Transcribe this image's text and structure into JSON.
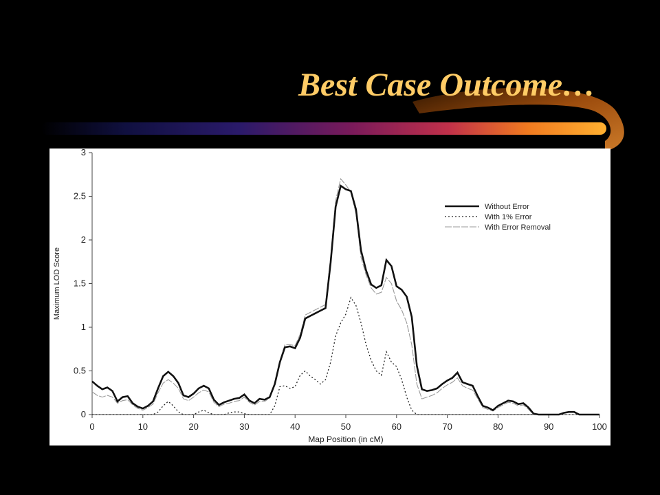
{
  "slide": {
    "title": "Best Case Outcome…",
    "title_color": "#FFCC66",
    "background": "#000000"
  },
  "chart_data": {
    "type": "line",
    "title": "",
    "xlabel": "Map Position (in cM)",
    "ylabel": "Maximum LOD Score",
    "xlim": [
      0,
      100
    ],
    "ylim": [
      0,
      3
    ],
    "xticks": [
      0,
      10,
      20,
      30,
      40,
      50,
      60,
      70,
      80,
      90,
      100
    ],
    "yticks": [
      0,
      0.5,
      1,
      1.5,
      2,
      2.5,
      3
    ],
    "grid": false,
    "legend_position": "top-right",
    "series": [
      {
        "name": "Without Error",
        "style": "solid-thick",
        "points": [
          [
            0,
            0.38
          ],
          [
            1,
            0.33
          ],
          [
            2,
            0.29
          ],
          [
            3,
            0.31
          ],
          [
            4,
            0.27
          ],
          [
            5,
            0.15
          ],
          [
            6,
            0.2
          ],
          [
            7,
            0.21
          ],
          [
            8,
            0.13
          ],
          [
            9,
            0.09
          ],
          [
            10,
            0.07
          ],
          [
            11,
            0.1
          ],
          [
            12,
            0.15
          ],
          [
            13,
            0.3
          ],
          [
            14,
            0.44
          ],
          [
            15,
            0.49
          ],
          [
            16,
            0.44
          ],
          [
            17,
            0.36
          ],
          [
            18,
            0.22
          ],
          [
            19,
            0.2
          ],
          [
            20,
            0.24
          ],
          [
            21,
            0.3
          ],
          [
            22,
            0.33
          ],
          [
            23,
            0.3
          ],
          [
            24,
            0.17
          ],
          [
            25,
            0.11
          ],
          [
            26,
            0.14
          ],
          [
            27,
            0.16
          ],
          [
            28,
            0.18
          ],
          [
            29,
            0.19
          ],
          [
            30,
            0.23
          ],
          [
            31,
            0.16
          ],
          [
            32,
            0.13
          ],
          [
            33,
            0.18
          ],
          [
            34,
            0.17
          ],
          [
            35,
            0.2
          ],
          [
            36,
            0.35
          ],
          [
            37,
            0.6
          ],
          [
            38,
            0.77
          ],
          [
            39,
            0.78
          ],
          [
            40,
            0.76
          ],
          [
            41,
            0.88
          ],
          [
            42,
            1.1
          ],
          [
            43,
            1.13
          ],
          [
            44,
            1.16
          ],
          [
            45,
            1.19
          ],
          [
            46,
            1.22
          ],
          [
            47,
            1.74
          ],
          [
            48,
            2.38
          ],
          [
            49,
            2.62
          ],
          [
            50,
            2.58
          ],
          [
            51,
            2.56
          ],
          [
            52,
            2.35
          ],
          [
            53,
            1.88
          ],
          [
            54,
            1.65
          ],
          [
            55,
            1.49
          ],
          [
            56,
            1.45
          ],
          [
            57,
            1.48
          ],
          [
            58,
            1.77
          ],
          [
            59,
            1.7
          ],
          [
            60,
            1.47
          ],
          [
            61,
            1.43
          ],
          [
            62,
            1.35
          ],
          [
            63,
            1.12
          ],
          [
            64,
            0.56
          ],
          [
            65,
            0.29
          ],
          [
            66,
            0.27
          ],
          [
            67,
            0.28
          ],
          [
            68,
            0.3
          ],
          [
            69,
            0.35
          ],
          [
            70,
            0.39
          ],
          [
            71,
            0.42
          ],
          [
            72,
            0.48
          ],
          [
            73,
            0.37
          ],
          [
            74,
            0.35
          ],
          [
            75,
            0.33
          ],
          [
            76,
            0.21
          ],
          [
            77,
            0.1
          ],
          [
            78,
            0.08
          ],
          [
            79,
            0.05
          ],
          [
            80,
            0.1
          ],
          [
            81,
            0.13
          ],
          [
            82,
            0.16
          ],
          [
            83,
            0.15
          ],
          [
            84,
            0.12
          ],
          [
            85,
            0.13
          ],
          [
            86,
            0.08
          ],
          [
            87,
            0.01
          ],
          [
            88,
            0.0
          ],
          [
            89,
            0.0
          ],
          [
            90,
            0.0
          ],
          [
            92,
            0.0
          ],
          [
            93,
            0.02
          ],
          [
            94,
            0.03
          ],
          [
            95,
            0.03
          ],
          [
            96,
            0.0
          ],
          [
            98,
            0.0
          ],
          [
            100,
            0.0
          ]
        ]
      },
      {
        "name": "With 1% Error",
        "style": "dotted",
        "points": [
          [
            0,
            0.0
          ],
          [
            5,
            0.0
          ],
          [
            12,
            0.0
          ],
          [
            13,
            0.03
          ],
          [
            14,
            0.1
          ],
          [
            15,
            0.15
          ],
          [
            16,
            0.1
          ],
          [
            17,
            0.03
          ],
          [
            18,
            0.0
          ],
          [
            19,
            0.0
          ],
          [
            20,
            0.0
          ],
          [
            21,
            0.03
          ],
          [
            22,
            0.05
          ],
          [
            23,
            0.02
          ],
          [
            24,
            0.0
          ],
          [
            26,
            0.0
          ],
          [
            27,
            0.02
          ],
          [
            28,
            0.03
          ],
          [
            29,
            0.03
          ],
          [
            30,
            0.01
          ],
          [
            31,
            0.0
          ],
          [
            35,
            0.0
          ],
          [
            36,
            0.1
          ],
          [
            37,
            0.32
          ],
          [
            38,
            0.33
          ],
          [
            39,
            0.3
          ],
          [
            40,
            0.32
          ],
          [
            41,
            0.45
          ],
          [
            42,
            0.5
          ],
          [
            43,
            0.44
          ],
          [
            44,
            0.4
          ],
          [
            45,
            0.35
          ],
          [
            46,
            0.4
          ],
          [
            47,
            0.6
          ],
          [
            48,
            0.9
          ],
          [
            49,
            1.05
          ],
          [
            50,
            1.15
          ],
          [
            51,
            1.34
          ],
          [
            52,
            1.25
          ],
          [
            53,
            1.05
          ],
          [
            54,
            0.8
          ],
          [
            55,
            0.62
          ],
          [
            56,
            0.5
          ],
          [
            57,
            0.45
          ],
          [
            58,
            0.72
          ],
          [
            59,
            0.6
          ],
          [
            60,
            0.55
          ],
          [
            61,
            0.4
          ],
          [
            62,
            0.2
          ],
          [
            63,
            0.05
          ],
          [
            64,
            0.0
          ],
          [
            100,
            0.0
          ]
        ]
      },
      {
        "name": "With Error Removal",
        "style": "dashed-thin",
        "points": [
          [
            0,
            0.26
          ],
          [
            1,
            0.22
          ],
          [
            2,
            0.2
          ],
          [
            3,
            0.22
          ],
          [
            4,
            0.2
          ],
          [
            5,
            0.13
          ],
          [
            6,
            0.16
          ],
          [
            7,
            0.17
          ],
          [
            8,
            0.11
          ],
          [
            9,
            0.07
          ],
          [
            10,
            0.05
          ],
          [
            11,
            0.08
          ],
          [
            12,
            0.12
          ],
          [
            13,
            0.25
          ],
          [
            14,
            0.36
          ],
          [
            15,
            0.4
          ],
          [
            16,
            0.36
          ],
          [
            17,
            0.3
          ],
          [
            18,
            0.18
          ],
          [
            19,
            0.16
          ],
          [
            20,
            0.2
          ],
          [
            21,
            0.25
          ],
          [
            22,
            0.28
          ],
          [
            23,
            0.26
          ],
          [
            24,
            0.14
          ],
          [
            25,
            0.09
          ],
          [
            26,
            0.12
          ],
          [
            27,
            0.13
          ],
          [
            28,
            0.15
          ],
          [
            29,
            0.16
          ],
          [
            30,
            0.2
          ],
          [
            31,
            0.14
          ],
          [
            32,
            0.11
          ],
          [
            33,
            0.15
          ],
          [
            34,
            0.15
          ],
          [
            35,
            0.19
          ],
          [
            36,
            0.36
          ],
          [
            37,
            0.62
          ],
          [
            38,
            0.8
          ],
          [
            39,
            0.8
          ],
          [
            40,
            0.79
          ],
          [
            41,
            0.92
          ],
          [
            42,
            1.14
          ],
          [
            43,
            1.17
          ],
          [
            44,
            1.2
          ],
          [
            45,
            1.23
          ],
          [
            46,
            1.26
          ],
          [
            47,
            1.8
          ],
          [
            48,
            2.45
          ],
          [
            49,
            2.7
          ],
          [
            50,
            2.63
          ],
          [
            51,
            2.55
          ],
          [
            52,
            2.3
          ],
          [
            53,
            1.8
          ],
          [
            54,
            1.6
          ],
          [
            55,
            1.45
          ],
          [
            56,
            1.38
          ],
          [
            57,
            1.4
          ],
          [
            58,
            1.57
          ],
          [
            59,
            1.5
          ],
          [
            60,
            1.3
          ],
          [
            61,
            1.2
          ],
          [
            62,
            1.05
          ],
          [
            63,
            0.8
          ],
          [
            64,
            0.35
          ],
          [
            65,
            0.18
          ],
          [
            66,
            0.2
          ],
          [
            67,
            0.22
          ],
          [
            68,
            0.25
          ],
          [
            69,
            0.3
          ],
          [
            70,
            0.34
          ],
          [
            71,
            0.37
          ],
          [
            72,
            0.42
          ],
          [
            73,
            0.33
          ],
          [
            74,
            0.3
          ],
          [
            75,
            0.28
          ],
          [
            76,
            0.18
          ],
          [
            77,
            0.08
          ],
          [
            78,
            0.06
          ],
          [
            79,
            0.04
          ],
          [
            80,
            0.08
          ],
          [
            81,
            0.11
          ],
          [
            82,
            0.14
          ],
          [
            83,
            0.13
          ],
          [
            84,
            0.1
          ],
          [
            85,
            0.11
          ],
          [
            86,
            0.06
          ],
          [
            87,
            0.0
          ],
          [
            100,
            0.0
          ]
        ]
      }
    ]
  }
}
